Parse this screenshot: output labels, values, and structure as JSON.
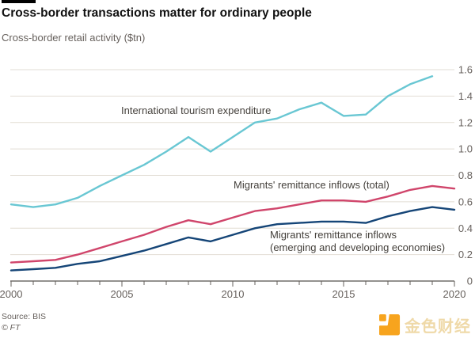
{
  "header": {
    "title": "Cross-border transactions matter for ordinary people",
    "subtitle": "Cross-border retail activity ($tn)"
  },
  "chart_data": {
    "type": "line",
    "title": "Cross-border transactions matter for ordinary people",
    "subtitle": "Cross-border retail activity ($tn)",
    "xlabel": "",
    "ylabel": "$tn",
    "xlim": [
      2000,
      2020
    ],
    "ylim": [
      0,
      1.6
    ],
    "ytick_step": 0.2,
    "x_tick_labels": [
      "2000",
      "2005",
      "2010",
      "2015",
      "2020"
    ],
    "x_major_years": [
      2000,
      2005,
      2010,
      2015,
      2020
    ],
    "grid": "horizontal",
    "legend_position": "inline-annotations",
    "colors": {
      "gridline": "#e2ddd4",
      "axis_line": "#29261f",
      "tick": "#66605c",
      "axis_text": "#66605c",
      "annotation_text": "#45413c"
    },
    "series": [
      {
        "name": "International tourism expenditure",
        "color": "#69c7d3",
        "x_start": 2000,
        "x_end": 2019,
        "values": [
          0.58,
          0.56,
          0.58,
          0.63,
          0.72,
          0.8,
          0.88,
          0.98,
          1.09,
          0.98,
          1.09,
          1.2,
          1.23,
          1.3,
          1.35,
          1.25,
          1.26,
          1.4,
          1.49,
          1.55
        ]
      },
      {
        "name": "Migrants' remittance inflows (total)",
        "color": "#d0456b",
        "x_start": 2000,
        "x_end": 2020,
        "values": [
          0.14,
          0.15,
          0.16,
          0.2,
          0.25,
          0.3,
          0.35,
          0.41,
          0.46,
          0.43,
          0.48,
          0.53,
          0.55,
          0.58,
          0.61,
          0.61,
          0.6,
          0.64,
          0.69,
          0.72,
          0.7
        ]
      },
      {
        "name": "Migrants' remittance inflows (emerging and developing economies)",
        "color": "#154577",
        "x_start": 2000,
        "x_end": 2020,
        "values": [
          0.08,
          0.09,
          0.1,
          0.13,
          0.15,
          0.19,
          0.23,
          0.28,
          0.33,
          0.3,
          0.35,
          0.4,
          0.43,
          0.44,
          0.45,
          0.45,
          0.44,
          0.49,
          0.53,
          0.56,
          0.54
        ]
      }
    ],
    "annotations": [
      {
        "text": "International tourism expenditure"
      },
      {
        "text": "Migrants' remittance inflows (total)"
      },
      {
        "text": "Migrants' remittance inflows\n(emerging and developing economies)"
      }
    ]
  },
  "footer": {
    "source": "Source: BIS",
    "copyright": "© FT"
  },
  "watermark": {
    "text": "金色财经",
    "icon_color": "#f7a41e",
    "text_color": "#efd9a8"
  }
}
